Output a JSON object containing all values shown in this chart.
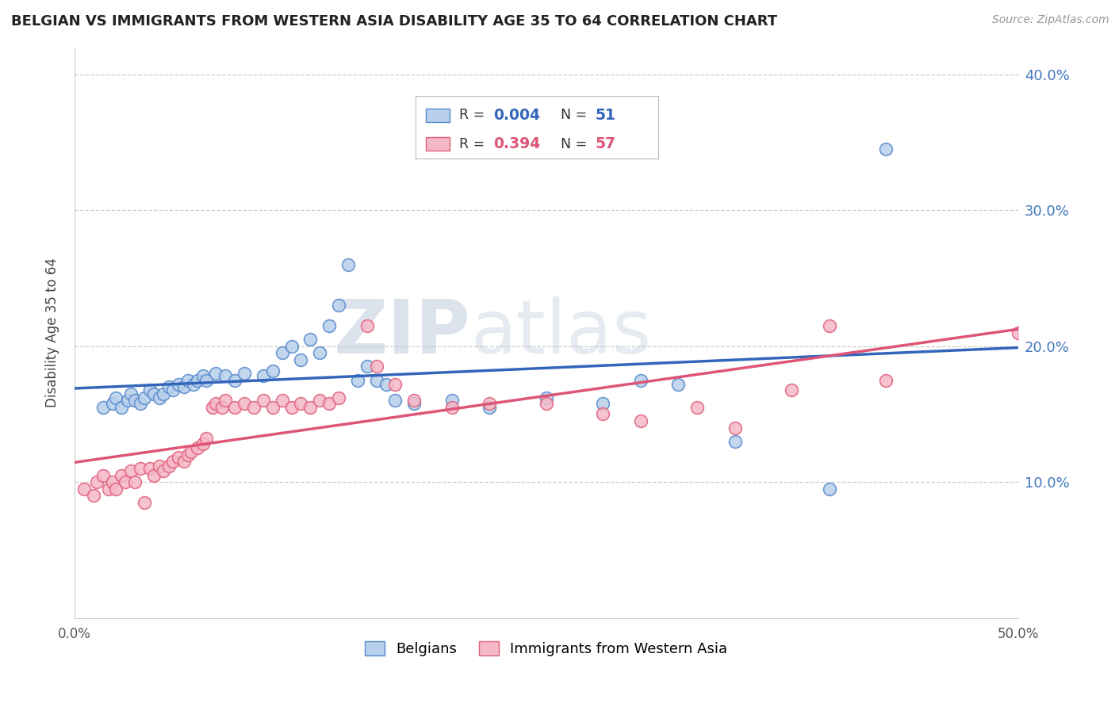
{
  "title": "BELGIAN VS IMMIGRANTS FROM WESTERN ASIA DISABILITY AGE 35 TO 64 CORRELATION CHART",
  "source": "Source: ZipAtlas.com",
  "ylabel": "Disability Age 35 to 64",
  "xlim": [
    0.0,
    0.5
  ],
  "ylim": [
    0.0,
    0.42
  ],
  "yticks": [
    0.1,
    0.2,
    0.3,
    0.4
  ],
  "yticklabels": [
    "10.0%",
    "20.0%",
    "30.0%",
    "40.0%"
  ],
  "legend_r_blue": "0.004",
  "legend_n_blue": "51",
  "legend_r_pink": "0.394",
  "legend_n_pink": "57",
  "blue_fill": "#b8d0eb",
  "blue_edge": "#5588cc",
  "pink_fill": "#f5b8c8",
  "pink_edge": "#e0607a",
  "blue_line": "#3366bb",
  "pink_line": "#dd5577",
  "watermark_zip": "ZIP",
  "watermark_atlas": "atlas",
  "grid_color": "#cccccc",
  "bg": "#ffffff",
  "title_color": "#222222",
  "axis_label_color": "#444444",
  "blue_dots": [
    [
      0.015,
      0.155
    ],
    [
      0.02,
      0.158
    ],
    [
      0.022,
      0.162
    ],
    [
      0.025,
      0.155
    ],
    [
      0.028,
      0.16
    ],
    [
      0.03,
      0.165
    ],
    [
      0.032,
      0.16
    ],
    [
      0.035,
      0.158
    ],
    [
      0.037,
      0.162
    ],
    [
      0.04,
      0.168
    ],
    [
      0.042,
      0.165
    ],
    [
      0.045,
      0.162
    ],
    [
      0.047,
      0.165
    ],
    [
      0.05,
      0.17
    ],
    [
      0.052,
      0.168
    ],
    [
      0.055,
      0.172
    ],
    [
      0.058,
      0.17
    ],
    [
      0.06,
      0.175
    ],
    [
      0.063,
      0.172
    ],
    [
      0.065,
      0.175
    ],
    [
      0.068,
      0.178
    ],
    [
      0.07,
      0.175
    ],
    [
      0.075,
      0.18
    ],
    [
      0.08,
      0.178
    ],
    [
      0.085,
      0.175
    ],
    [
      0.09,
      0.18
    ],
    [
      0.1,
      0.178
    ],
    [
      0.105,
      0.182
    ],
    [
      0.11,
      0.195
    ],
    [
      0.115,
      0.2
    ],
    [
      0.12,
      0.19
    ],
    [
      0.125,
      0.205
    ],
    [
      0.13,
      0.195
    ],
    [
      0.135,
      0.215
    ],
    [
      0.14,
      0.23
    ],
    [
      0.145,
      0.26
    ],
    [
      0.15,
      0.175
    ],
    [
      0.155,
      0.185
    ],
    [
      0.16,
      0.175
    ],
    [
      0.165,
      0.172
    ],
    [
      0.17,
      0.16
    ],
    [
      0.18,
      0.158
    ],
    [
      0.2,
      0.16
    ],
    [
      0.22,
      0.155
    ],
    [
      0.25,
      0.162
    ],
    [
      0.28,
      0.158
    ],
    [
      0.3,
      0.175
    ],
    [
      0.32,
      0.172
    ],
    [
      0.35,
      0.13
    ],
    [
      0.4,
      0.095
    ],
    [
      0.43,
      0.345
    ]
  ],
  "pink_dots": [
    [
      0.005,
      0.095
    ],
    [
      0.01,
      0.09
    ],
    [
      0.012,
      0.1
    ],
    [
      0.015,
      0.105
    ],
    [
      0.018,
      0.095
    ],
    [
      0.02,
      0.1
    ],
    [
      0.022,
      0.095
    ],
    [
      0.025,
      0.105
    ],
    [
      0.027,
      0.1
    ],
    [
      0.03,
      0.108
    ],
    [
      0.032,
      0.1
    ],
    [
      0.035,
      0.11
    ],
    [
      0.037,
      0.085
    ],
    [
      0.04,
      0.11
    ],
    [
      0.042,
      0.105
    ],
    [
      0.045,
      0.112
    ],
    [
      0.047,
      0.108
    ],
    [
      0.05,
      0.112
    ],
    [
      0.052,
      0.115
    ],
    [
      0.055,
      0.118
    ],
    [
      0.058,
      0.115
    ],
    [
      0.06,
      0.12
    ],
    [
      0.062,
      0.122
    ],
    [
      0.065,
      0.125
    ],
    [
      0.068,
      0.128
    ],
    [
      0.07,
      0.132
    ],
    [
      0.073,
      0.155
    ],
    [
      0.075,
      0.158
    ],
    [
      0.078,
      0.155
    ],
    [
      0.08,
      0.16
    ],
    [
      0.085,
      0.155
    ],
    [
      0.09,
      0.158
    ],
    [
      0.095,
      0.155
    ],
    [
      0.1,
      0.16
    ],
    [
      0.105,
      0.155
    ],
    [
      0.11,
      0.16
    ],
    [
      0.115,
      0.155
    ],
    [
      0.12,
      0.158
    ],
    [
      0.125,
      0.155
    ],
    [
      0.13,
      0.16
    ],
    [
      0.135,
      0.158
    ],
    [
      0.14,
      0.162
    ],
    [
      0.155,
      0.215
    ],
    [
      0.16,
      0.185
    ],
    [
      0.17,
      0.172
    ],
    [
      0.18,
      0.16
    ],
    [
      0.2,
      0.155
    ],
    [
      0.22,
      0.158
    ],
    [
      0.25,
      0.158
    ],
    [
      0.28,
      0.15
    ],
    [
      0.3,
      0.145
    ],
    [
      0.33,
      0.155
    ],
    [
      0.35,
      0.14
    ],
    [
      0.38,
      0.168
    ],
    [
      0.4,
      0.215
    ],
    [
      0.43,
      0.175
    ],
    [
      0.5,
      0.21
    ]
  ]
}
